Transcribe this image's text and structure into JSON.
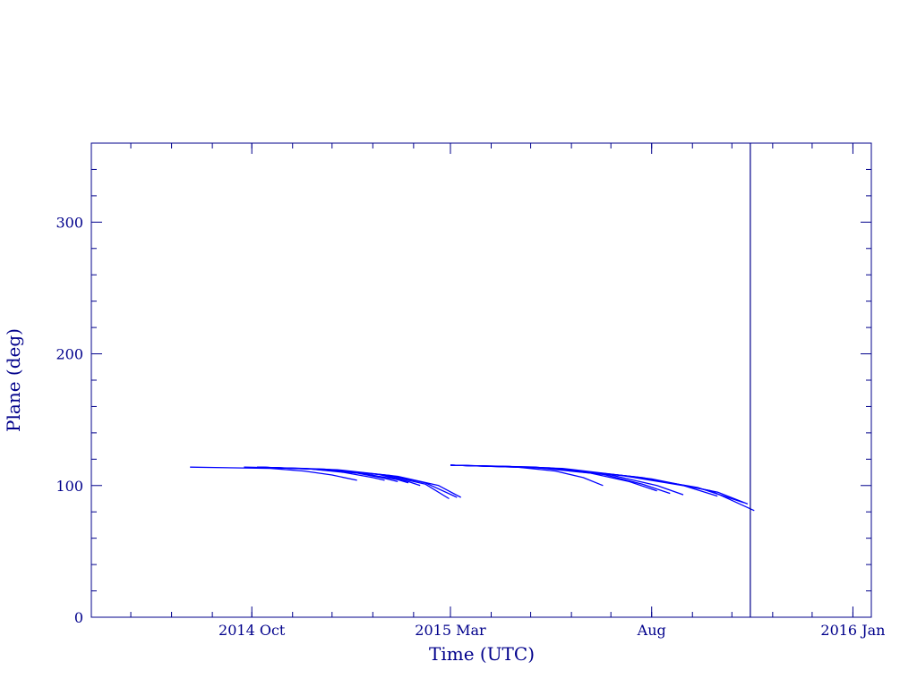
{
  "chart_data": {
    "type": "line",
    "title": "",
    "xlabel": "Time (UTC)",
    "ylabel": "Plane (deg)",
    "xlim": [
      "2014-06-01",
      "2016-01-15"
    ],
    "ylim": [
      0,
      360
    ],
    "x_ticks": [
      {
        "date": "2014-10-01",
        "label": "2014 Oct"
      },
      {
        "date": "2015-03-01",
        "label": "2015 Mar"
      },
      {
        "date": "2015-08-01",
        "label": "Aug"
      },
      {
        "date": "2016-01-01",
        "label": "2016 Jan"
      }
    ],
    "y_ticks": [
      0,
      100,
      200,
      300
    ],
    "vertical_marker": {
      "date": "2015-10-15"
    },
    "grid": false,
    "colors": {
      "axes": "#00008b",
      "series": "#0000ff",
      "marker": "#00008b"
    },
    "series": [
      {
        "x": [
          "2014-08-15",
          "2014-10-15",
          "2014-11-10",
          "2014-12-01",
          "2014-12-20"
        ],
        "y": [
          114,
          113,
          111,
          108,
          104
        ]
      },
      {
        "x": [
          "2014-09-25",
          "2014-11-10",
          "2014-12-10",
          "2015-01-01",
          "2015-01-10"
        ],
        "y": [
          114,
          113,
          110,
          106,
          104
        ]
      },
      {
        "x": [
          "2014-10-05",
          "2014-11-15",
          "2014-12-20",
          "2015-01-10",
          "2015-01-20"
        ],
        "y": [
          114,
          112.5,
          109.5,
          105.5,
          103
        ]
      },
      {
        "x": [
          "2014-10-05",
          "2014-11-20",
          "2014-12-25",
          "2015-01-20",
          "2015-01-28"
        ],
        "y": [
          114,
          112.5,
          109,
          104.5,
          102
        ]
      },
      {
        "x": [
          "2014-10-05",
          "2014-11-25",
          "2015-01-05",
          "2015-01-28",
          "2015-02-06"
        ],
        "y": [
          114,
          112.5,
          108.5,
          103,
          100
        ]
      },
      {
        "x": [
          "2014-10-05",
          "2014-12-01",
          "2015-01-10",
          "2015-02-10",
          "2015-02-28"
        ],
        "y": [
          114,
          112,
          108,
          101,
          90
        ]
      },
      {
        "x": [
          "2014-10-05",
          "2014-12-01",
          "2015-01-15",
          "2015-02-10",
          "2015-03-06"
        ],
        "y": [
          114,
          112,
          107.5,
          102,
          91
        ]
      },
      {
        "x": [
          "2014-10-05",
          "2014-12-05",
          "2015-01-20",
          "2015-02-20",
          "2015-03-09"
        ],
        "y": [
          114,
          112,
          107,
          100,
          91
        ]
      },
      {
        "x": [
          "2015-03-01",
          "2015-04-15",
          "2015-05-20",
          "2015-06-10",
          "2015-06-25"
        ],
        "y": [
          115.5,
          114.5,
          111,
          106,
          100
        ]
      },
      {
        "x": [
          "2015-03-01",
          "2015-05-01",
          "2015-06-15",
          "2015-07-15",
          "2015-08-05"
        ],
        "y": [
          115.5,
          114,
          109.5,
          103,
          96
        ]
      },
      {
        "x": [
          "2015-03-01",
          "2015-05-05",
          "2015-06-25",
          "2015-07-25",
          "2015-08-15"
        ],
        "y": [
          115.5,
          114,
          108.5,
          101,
          94
        ]
      },
      {
        "x": [
          "2015-03-01",
          "2015-05-10",
          "2015-07-01",
          "2015-08-05",
          "2015-08-25"
        ],
        "y": [
          115.5,
          113.5,
          108,
          100,
          93
        ]
      },
      {
        "x": [
          "2015-03-01",
          "2015-05-15",
          "2015-07-10",
          "2015-08-25",
          "2015-09-20"
        ],
        "y": [
          115.5,
          113.5,
          107.5,
          100,
          92
        ]
      },
      {
        "x": [
          "2015-03-01",
          "2015-05-20",
          "2015-07-20",
          "2015-09-05",
          "2015-10-10"
        ],
        "y": [
          115.5,
          113,
          106.5,
          98.5,
          87
        ]
      },
      {
        "x": [
          "2015-03-01",
          "2015-05-20",
          "2015-07-25",
          "2015-09-15",
          "2015-10-18"
        ],
        "y": [
          115.5,
          113,
          106,
          96,
          81
        ]
      },
      {
        "x": [
          "2015-03-01",
          "2015-05-25",
          "2015-08-01",
          "2015-09-20",
          "2015-10-13"
        ],
        "y": [
          115.5,
          113,
          105,
          95,
          86
        ]
      }
    ]
  }
}
